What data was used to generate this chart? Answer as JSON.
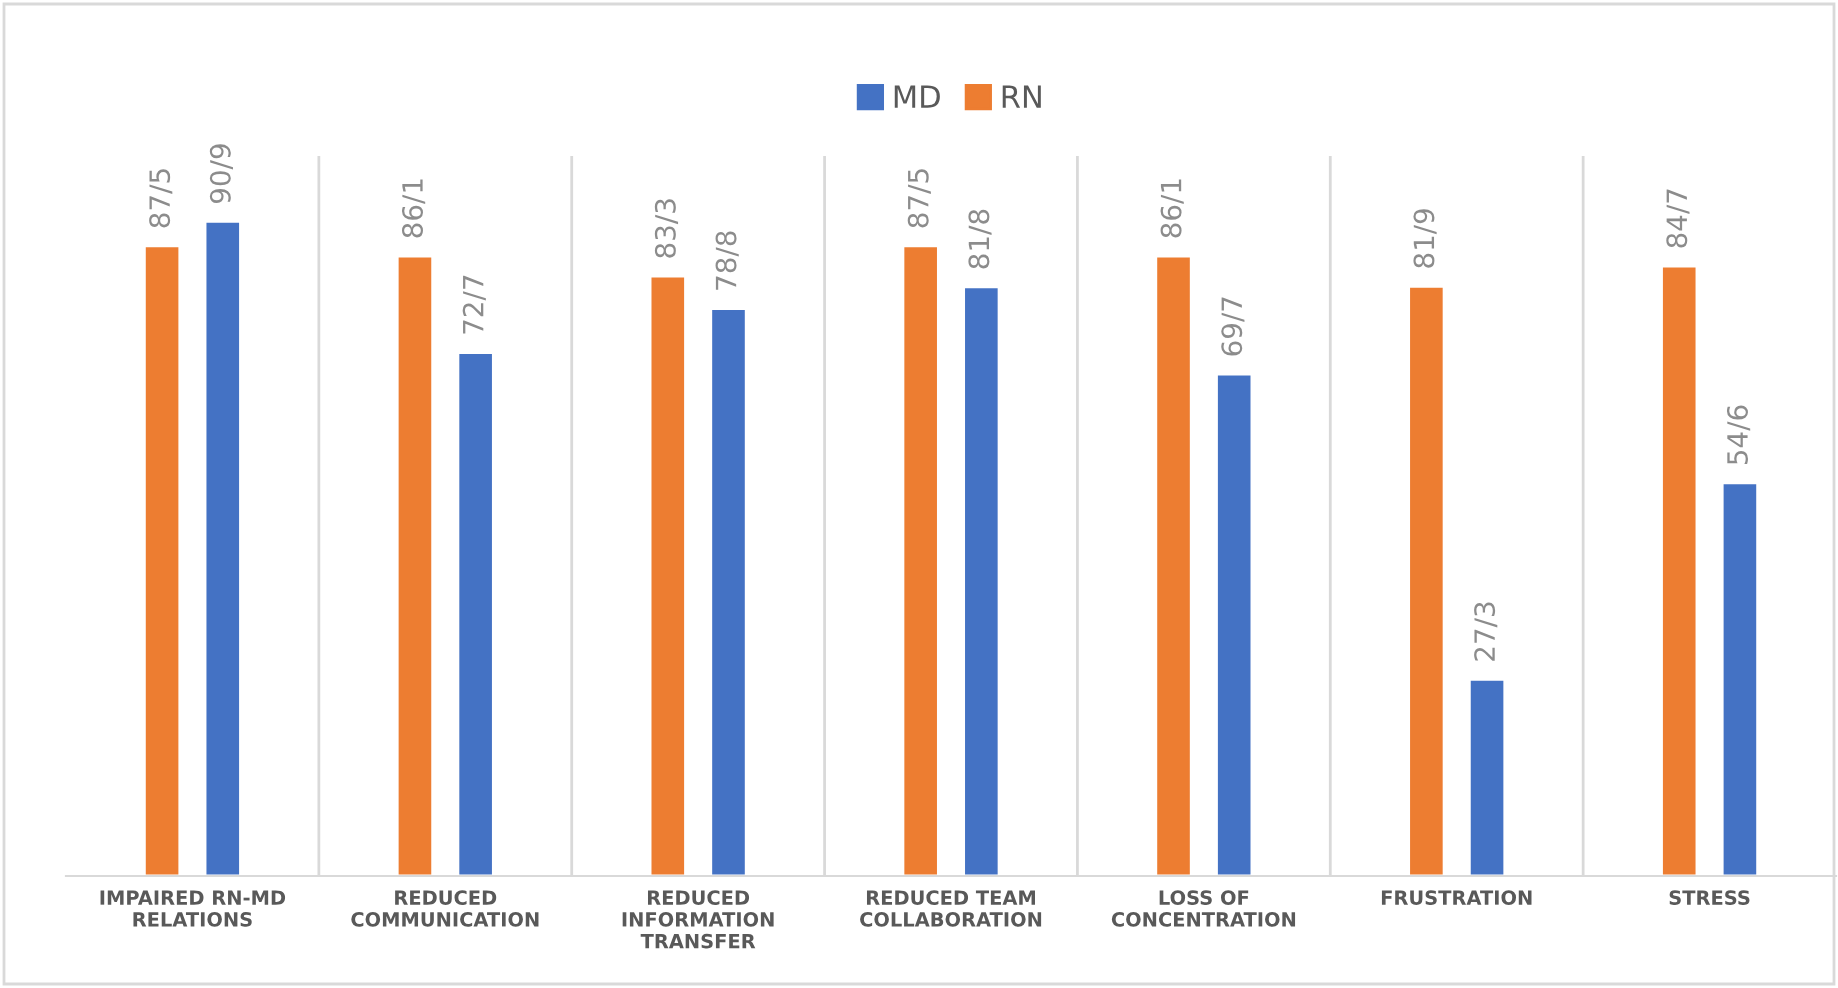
{
  "chart_data": {
    "type": "bar",
    "categories": [
      "IMPAIRED RN-MD\nRELATIONS",
      "REDUCED\nCOMMUNICATION",
      "REDUCED\nINFORMATION\nTRANSFER",
      "REDUCED TEAM\nCOLLABORATION",
      "LOSS OF\nCONCENTRATION",
      "FRUSTRATION",
      "STRESS"
    ],
    "series": [
      {
        "name": "RN",
        "color": "#ed7d31",
        "values": [
          87.5,
          86.1,
          83.3,
          87.5,
          86.1,
          81.9,
          84.7
        ],
        "value_labels": [
          "87/5",
          "86/1",
          "83/3",
          "87/5",
          "86/1",
          "81/9",
          "84/7"
        ]
      },
      {
        "name": "MD",
        "color": "#4472c4",
        "values": [
          90.9,
          72.7,
          78.8,
          81.8,
          69.7,
          27.3,
          54.6
        ],
        "value_labels": [
          "90/9",
          "72/7",
          "78/8",
          "81/8",
          "69/7",
          "27/3",
          "54/6"
        ]
      }
    ],
    "grid": "x",
    "legend": "top"
  }
}
